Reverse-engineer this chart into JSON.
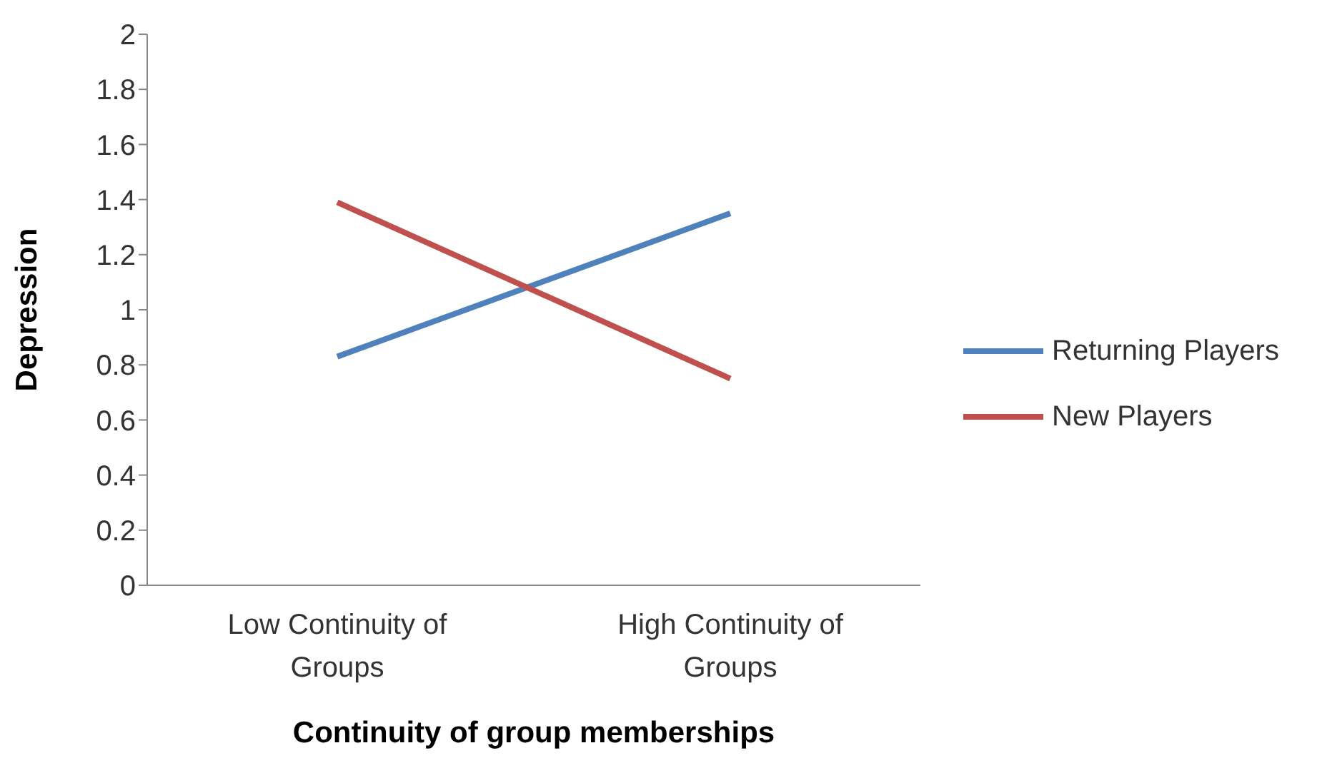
{
  "chart_data": {
    "type": "line",
    "xlabel": "Continuity of group memberships",
    "ylabel": "Depression",
    "categories": [
      "Low Continuity of Groups",
      "High Continuity of Groups"
    ],
    "series": [
      {
        "name": "Returning Players",
        "color": "#4f81bd",
        "values": [
          0.83,
          1.35
        ]
      },
      {
        "name": "New Players",
        "color": "#c0504d",
        "values": [
          1.39,
          0.75
        ]
      }
    ],
    "ylim": [
      0,
      2
    ],
    "yticks": [
      0,
      {
        "value": 0.2,
        "label": "0.2"
      },
      {
        "value": 0.4,
        "label": "0.4"
      },
      {
        "value": 0.6,
        "label": "0.6"
      },
      {
        "value": 0.8,
        "label": "0.8"
      },
      1,
      {
        "value": 1.2,
        "label": "1.2"
      },
      {
        "value": 1.4,
        "label": "1.4"
      },
      {
        "value": 1.6,
        "label": "1.6"
      },
      {
        "value": 1.8,
        "label": "1.8"
      },
      2
    ],
    "grid": false,
    "legend": "right",
    "marker": "none",
    "line_style": "solid"
  }
}
